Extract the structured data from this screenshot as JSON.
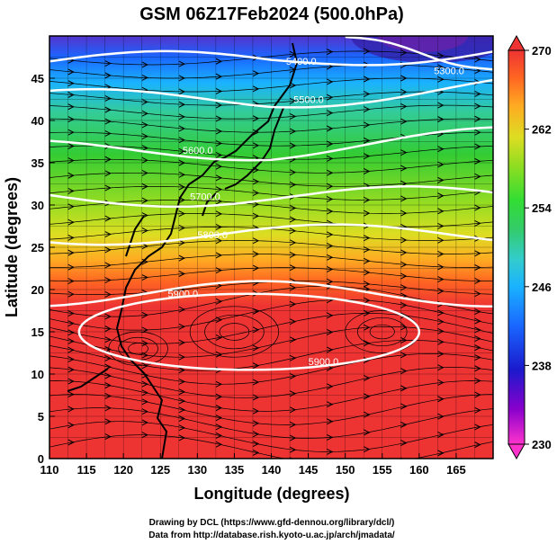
{
  "title": "GSM 06Z17Feb2024 (500.0hPa)",
  "xlabel": "Longitude (degrees)",
  "ylabel": "Latitude  (degrees)",
  "x_ticks": [
    "110",
    "115",
    "120",
    "125",
    "130",
    "135",
    "140",
    "145",
    "150",
    "155",
    "160",
    "165"
  ],
  "y_ticks": [
    "0",
    "5",
    "10",
    "15",
    "20",
    "25",
    "30",
    "35",
    "40",
    "45"
  ],
  "x_range": [
    110,
    170
  ],
  "y_range": [
    0,
    50
  ],
  "colorbar": {
    "ticks": [
      "230",
      "238",
      "246",
      "254",
      "262",
      "270"
    ],
    "range": [
      230,
      270
    ],
    "colors": [
      "#ff33cc",
      "#8800cc",
      "#1a1acc",
      "#1a66ff",
      "#1ab2ff",
      "#33cccc",
      "#33cc66",
      "#33dd33",
      "#88dd22",
      "#dddd22",
      "#ffaa22",
      "#ff6622",
      "#ee3333"
    ]
  },
  "contours": [
    {
      "label": "5400.0",
      "lat": 47.0
    },
    {
      "label": "5500.0",
      "lat": 42.5
    },
    {
      "label": "5600.0",
      "lat": 36.5
    },
    {
      "label": "5700.0",
      "lat": 31.0
    },
    {
      "label": "5800.0",
      "lat": 26.5
    },
    {
      "label": "5900.0",
      "lat": 19.5
    },
    {
      "label": "5900.0",
      "lat": 11.5
    },
    {
      "label": "5300.0",
      "lat": 48.0
    }
  ],
  "credits": [
    "Drawing by DCL (https://www.gfd-dennou.org/library/dcl/)",
    "Data from http://database.rish.kyoto-u.ac.jp/arch/jmadata/"
  ]
}
